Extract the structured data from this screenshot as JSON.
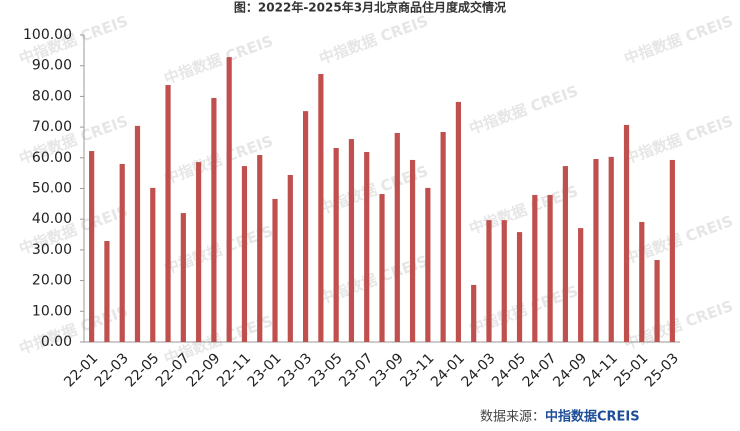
{
  "chart_data": {
    "type": "bar",
    "title": "图：2022年-2025年3月北京商品住月度成交情况",
    "categories": [
      "22-01",
      null,
      "22-03",
      null,
      "22-05",
      null,
      "22-07",
      null,
      "22-09",
      null,
      "22-11",
      null,
      "23-01",
      null,
      "23-03",
      null,
      "23-05",
      null,
      "23-07",
      null,
      "23-09",
      null,
      "23-11",
      null,
      "24-01",
      null,
      "24-03",
      null,
      "24-05",
      null,
      "24-07",
      null,
      "24-09",
      null,
      "24-11",
      null,
      "25-01",
      null,
      "25-03"
    ],
    "values": [
      62.2,
      32.9,
      58.0,
      70.4,
      50.2,
      83.7,
      42.0,
      58.6,
      79.5,
      92.8,
      57.3,
      60.9,
      46.6,
      54.4,
      75.2,
      87.3,
      63.2,
      66.1,
      61.9,
      48.2,
      68.1,
      59.3,
      50.2,
      68.4,
      78.2,
      18.6,
      39.7,
      39.7,
      35.8,
      47.9,
      47.9,
      57.3,
      37.1,
      59.6,
      60.3,
      70.7,
      39.1,
      26.7,
      59.3
    ],
    "color": "#c0504d",
    "ylim": [
      0,
      100
    ],
    "yticks": [
      {
        "value": 0,
        "label": "0.00"
      },
      {
        "value": 10,
        "label": "10.00"
      },
      {
        "value": 20,
        "label": "20.00"
      },
      {
        "value": 30,
        "label": "30.00"
      },
      {
        "value": 40,
        "label": "40.00"
      },
      {
        "value": 50,
        "label": "50.00"
      },
      {
        "value": 60,
        "label": "60.00"
      },
      {
        "value": 70,
        "label": "70.00"
      },
      {
        "value": 80,
        "label": "80.00"
      },
      {
        "value": 90,
        "label": "90.00"
      },
      {
        "value": 100,
        "label": "100.00"
      }
    ],
    "grid": false,
    "source_label": "数据来源：",
    "source_name": "中指数据CREIS",
    "watermark": "中指数据 CREIS"
  }
}
